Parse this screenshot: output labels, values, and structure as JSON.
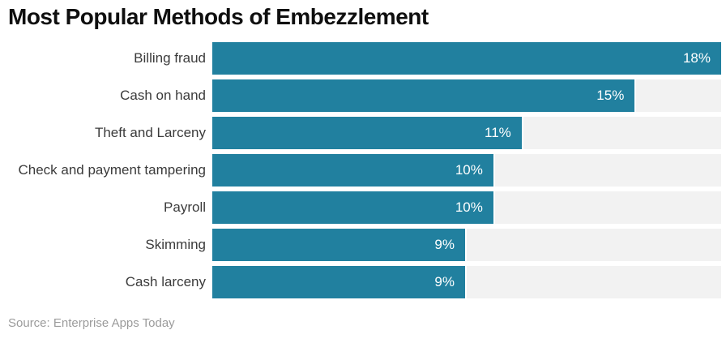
{
  "chart_data": {
    "type": "bar",
    "orientation": "horizontal",
    "title": "Most Popular Methods of Embezzlement",
    "categories": [
      "Billing fraud",
      "Cash on hand",
      "Theft and Larceny",
      "Check and payment tampering",
      "Payroll",
      "Skimming",
      "Cash larceny"
    ],
    "values": [
      18,
      15,
      11,
      10,
      10,
      9,
      9
    ],
    "value_labels": [
      "18%",
      "15%",
      "11%",
      "10%",
      "10%",
      "9%",
      "9%"
    ],
    "xlim": [
      0,
      18
    ],
    "grid": false,
    "legend": false,
    "bar_color": "#21809f",
    "track_color": "#f2f2f2",
    "value_label_color": "#ffffff",
    "category_label_color": "#3b3b3b"
  },
  "source": {
    "text": "Source: Enterprise Apps Today"
  }
}
